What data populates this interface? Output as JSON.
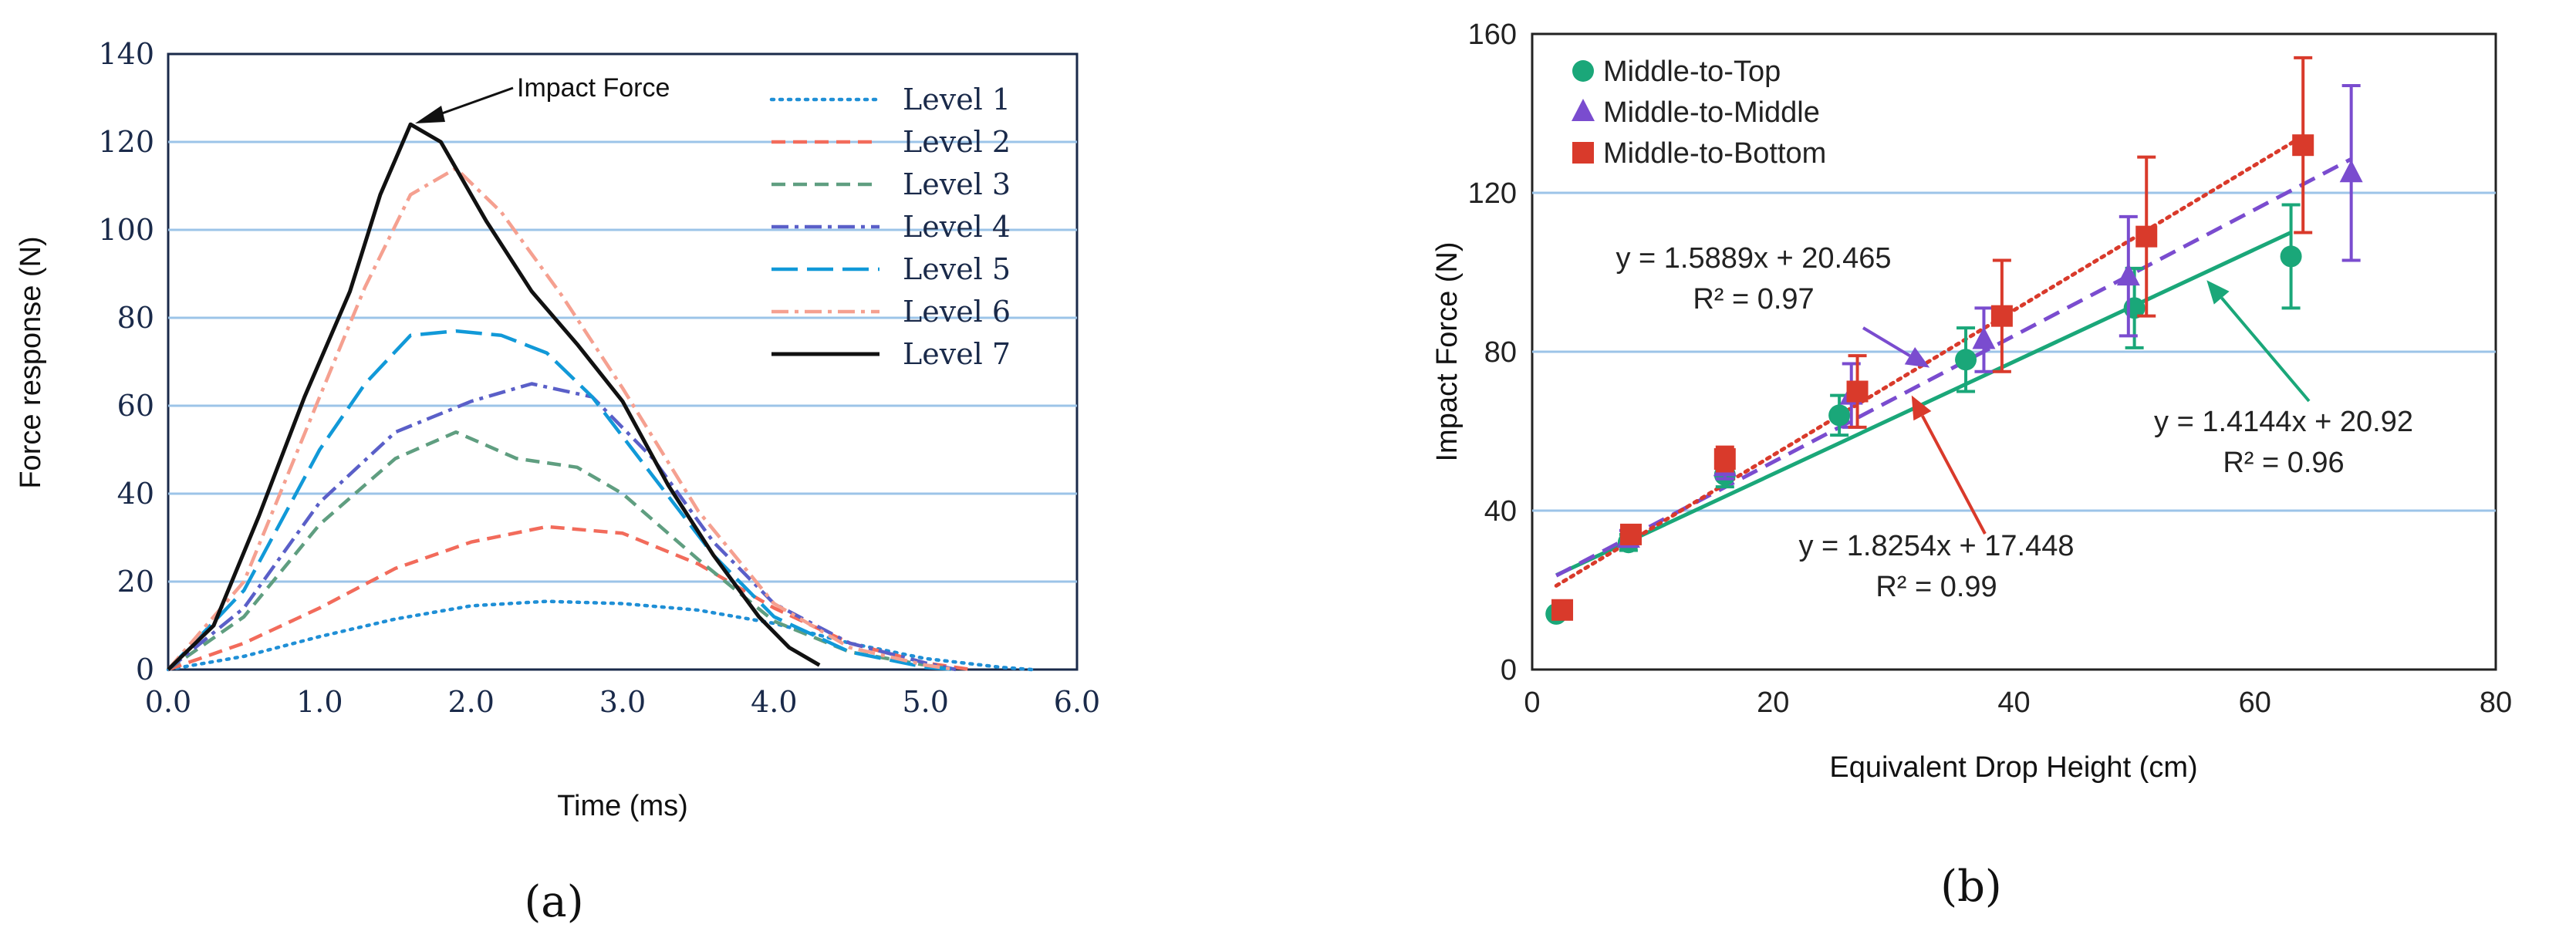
{
  "chart_data": [
    {
      "panel": "a",
      "type": "line",
      "caption": "(a)",
      "title": "",
      "xlabel": "Time (ms)",
      "ylabel": "Force response (N)",
      "xlim": [
        0,
        6
      ],
      "ylim": [
        0,
        140
      ],
      "xticks": [
        "0.0",
        "1.0",
        "2.0",
        "3.0",
        "4.0",
        "5.0",
        "6.0"
      ],
      "yticks": [
        "0",
        "20",
        "40",
        "60",
        "80",
        "100",
        "120",
        "140"
      ],
      "grid": "horizontal",
      "annotation": {
        "text": "Impact Force",
        "x": 1.6,
        "y": 124
      },
      "legend_position": "top-right",
      "series": [
        {
          "name": "Level 1",
          "color": "#1f8fd6",
          "dash": "dotted",
          "x": [
            0,
            0.5,
            1.0,
            1.5,
            2.0,
            2.5,
            3.0,
            3.5,
            4.0,
            4.5,
            5.0,
            5.5,
            5.7
          ],
          "y": [
            0,
            3,
            7.5,
            11.5,
            14.5,
            15.5,
            15,
            13.5,
            10.5,
            6,
            2.5,
            0.5,
            0
          ]
        },
        {
          "name": "Level 2",
          "color": "#f26b5b",
          "dash": "dashed",
          "x": [
            0,
            0.5,
            1.0,
            1.5,
            2.0,
            2.5,
            3.0,
            3.5,
            4.0,
            4.5,
            5.0,
            5.3
          ],
          "y": [
            0,
            6,
            14,
            23,
            29,
            32.5,
            31,
            24,
            14,
            6,
            1.5,
            0
          ]
        },
        {
          "name": "Level 3",
          "color": "#5f9e80",
          "dash": "dashed",
          "x": [
            0,
            0.5,
            1.0,
            1.5,
            1.9,
            2.3,
            2.7,
            3.0,
            3.5,
            4.0,
            4.5,
            5.0,
            5.2
          ],
          "y": [
            0,
            12,
            33,
            48,
            54,
            48,
            46,
            40,
            25,
            11,
            4,
            1,
            0
          ]
        },
        {
          "name": "Level 4",
          "color": "#5a5fc8",
          "dash": "dashdot",
          "x": [
            0,
            0.5,
            1.0,
            1.5,
            2.0,
            2.4,
            2.8,
            3.2,
            3.6,
            4.0,
            4.5,
            5.0,
            5.2
          ],
          "y": [
            0,
            14,
            38,
            54,
            61,
            65,
            62,
            48,
            29,
            15,
            6,
            1.5,
            0
          ]
        },
        {
          "name": "Level 5",
          "color": "#1199d8",
          "dash": "longdash",
          "x": [
            0,
            0.5,
            1.0,
            1.3,
            1.6,
            1.9,
            2.2,
            2.5,
            2.8,
            3.2,
            3.6,
            4.0,
            4.5,
            5.0,
            5.2
          ],
          "y": [
            0,
            18,
            50,
            65,
            76,
            77,
            76,
            72,
            62,
            44,
            26,
            12,
            4,
            0.5,
            0
          ]
        },
        {
          "name": "Level 6",
          "color": "#f5a090",
          "dash": "dashdot",
          "x": [
            0,
            0.5,
            1.0,
            1.3,
            1.6,
            1.9,
            2.2,
            2.6,
            3.0,
            3.5,
            4.0,
            4.5,
            5.0,
            5.2
          ],
          "y": [
            0,
            20,
            62,
            87,
            108,
            114,
            104,
            85,
            64,
            36,
            15,
            5,
            1,
            0
          ]
        },
        {
          "name": "Level 7",
          "color": "#111111",
          "dash": "solid",
          "x": [
            0,
            0.3,
            0.6,
            0.9,
            1.2,
            1.4,
            1.6,
            1.8,
            2.1,
            2.4,
            2.7,
            3.0,
            3.3,
            3.6,
            3.9,
            4.1,
            4.3
          ],
          "y": [
            0,
            10,
            35,
            62,
            86,
            108,
            124,
            120,
            102,
            86,
            74,
            61,
            42,
            26,
            12,
            5,
            1
          ]
        }
      ]
    },
    {
      "panel": "b",
      "type": "scatter",
      "caption": "(b)",
      "title": "",
      "xlabel": "Equivalent Drop Height (cm)",
      "ylabel": "Impact Force (N)",
      "xlim": [
        0,
        80
      ],
      "ylim": [
        0,
        160
      ],
      "xticks": [
        "0",
        "20",
        "40",
        "60",
        "80"
      ],
      "yticks": [
        "0",
        "40",
        "80",
        "120",
        "160"
      ],
      "grid": "horizontal",
      "legend_position": "top-left",
      "series": [
        {
          "name": "Middle-to-Top",
          "color": "#1aa779",
          "marker": "circle",
          "line": "solid",
          "x": [
            2,
            8,
            16,
            25.5,
            36,
            50,
            63
          ],
          "y": [
            14,
            32,
            49,
            64,
            78,
            91,
            104
          ],
          "err": [
            0,
            2,
            3,
            5,
            8,
            10,
            13
          ],
          "fit": {
            "slope": 1.4144,
            "intercept": 20.92,
            "x_range": [
              2,
              63
            ],
            "equation": "y = 1.4144x + 20.92",
            "r2": "R² = 0.96",
            "arrow_to": [
              56,
              98
            ]
          }
        },
        {
          "name": "Middle-to-Middle",
          "color": "#7a4ccf",
          "marker": "triangle",
          "line": "dashed",
          "x": [
            8,
            16,
            26.5,
            37.5,
            49.5,
            68
          ],
          "y": [
            33,
            51,
            69,
            83,
            99,
            125
          ],
          "err": [
            2,
            3,
            8,
            8,
            15,
            22
          ],
          "fit": {
            "slope": 1.5889,
            "intercept": 20.465,
            "x_range": [
              2,
              68
            ],
            "equation": "y = 1.5889x + 20.465",
            "r2": "R² = 0.97",
            "arrow_to": [
              33,
              76
            ]
          }
        },
        {
          "name": "Middle-to-Bottom",
          "color": "#d93a2b",
          "marker": "square",
          "line": "dotted",
          "x": [
            2.5,
            8.2,
            16,
            27,
            39,
            51,
            64
          ],
          "y": [
            15,
            34,
            53,
            70,
            89,
            109,
            132
          ],
          "err": [
            0,
            2,
            3,
            9,
            14,
            20,
            22
          ],
          "fit": {
            "slope": 1.8254,
            "intercept": 17.448,
            "x_range": [
              2,
              64
            ],
            "equation": "y = 1.8254x + 17.448",
            "r2": "R² = 0.99",
            "arrow_to": [
              31.5,
              69
            ]
          }
        }
      ]
    }
  ]
}
